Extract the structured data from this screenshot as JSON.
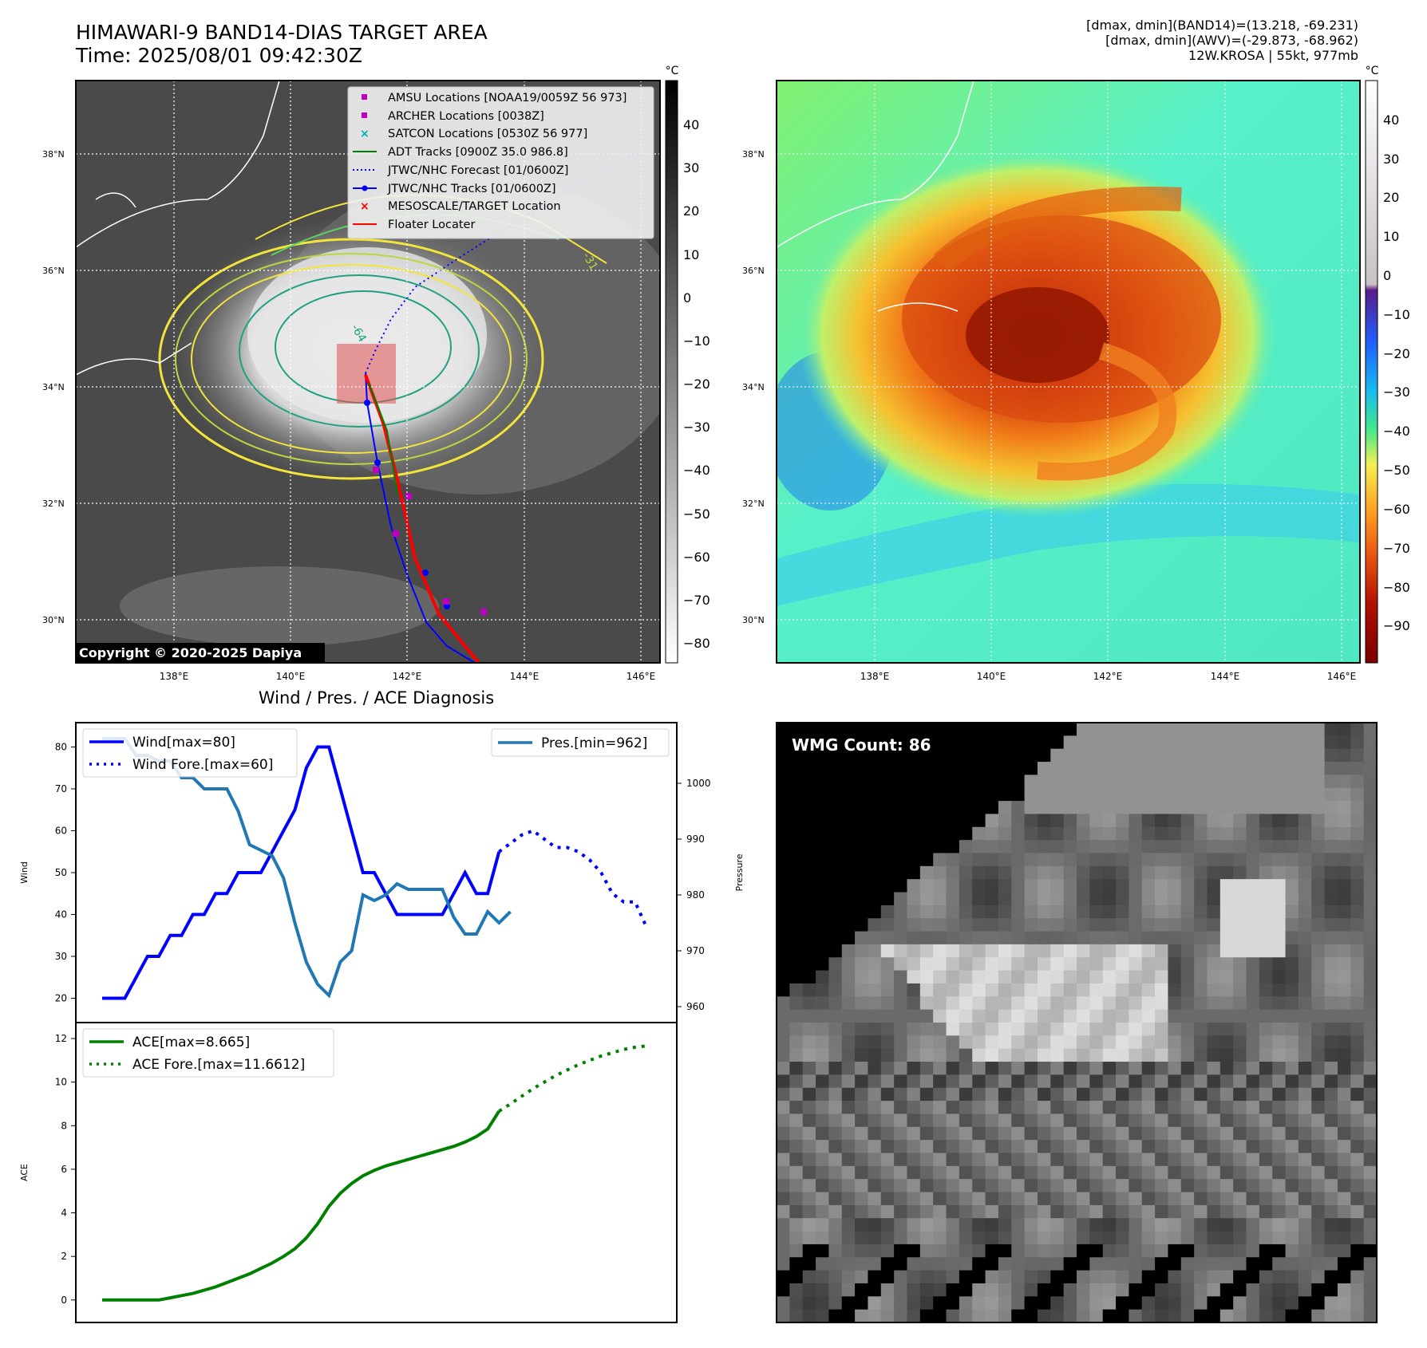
{
  "header": {
    "title_line1": "HIMAWARI-9 BAND14-DIAS TARGET AREA",
    "title_line2": "Time: 2025/08/01 09:42:30Z",
    "info_line1": "[dmax, dmin](BAND14)=(13.218, -69.231)",
    "info_line2": "[dmax, dmin](AWV)=(-29.873, -68.962)",
    "info_line3": "12W.KROSA | 55kt, 977mb"
  },
  "map": {
    "lat_labels": [
      "38°N",
      "36°N",
      "34°N",
      "32°N",
      "30°N"
    ],
    "lon_labels": [
      "138°E",
      "140°E",
      "142°E",
      "144°E",
      "146°E"
    ],
    "copyright": "Copyright © 2020-2025 Dapiya",
    "contour_labels": [
      "-64",
      "-31"
    ],
    "legend": [
      {
        "label": "AMSU Locations [NOAA19/0059Z 56 973]",
        "color": "#c000c0",
        "marker": "square"
      },
      {
        "label": "ARCHER Locations [0038Z]",
        "color": "#c000c0",
        "marker": "square"
      },
      {
        "label": "SATCON Locations [0530Z 56 977]",
        "color": "#00b0b0",
        "marker": "x"
      },
      {
        "label": "ADT Tracks [0900Z 35.0 986.8]",
        "color": "#008000",
        "marker": "line"
      },
      {
        "label": "JTWC/NHC Forecast [01/0600Z]",
        "color": "#0000ff",
        "marker": "dotted"
      },
      {
        "label": "JTWC/NHC Tracks [01/0600Z]",
        "color": "#0000ff",
        "marker": "line-dot"
      },
      {
        "label": "MESOSCALE/TARGET Location",
        "color": "#ff0000",
        "marker": "x"
      },
      {
        "label": "Floater Locater",
        "color": "#ff0000",
        "marker": "line"
      }
    ],
    "cbar1": {
      "unit": "°C",
      "ticks": [
        "40",
        "30",
        "20",
        "10",
        "0",
        "−10",
        "−20",
        "−30",
        "−40",
        "−50",
        "−60",
        "−70",
        "−80"
      ]
    },
    "cbar2": {
      "unit": "°C",
      "ticks": [
        "40",
        "30",
        "20",
        "10",
        "0",
        "−10",
        "−20",
        "−30",
        "−40",
        "−50",
        "−60",
        "−70",
        "−80",
        "−90"
      ]
    }
  },
  "wmg": {
    "label": "WMG Count: 86"
  },
  "chart_data": [
    {
      "type": "line",
      "title": "Wind / Pres. / ACE Diagnosis",
      "ylabel": "Wind",
      "ylim": [
        18,
        82
      ],
      "yticks": [
        20,
        30,
        40,
        50,
        60,
        70,
        80
      ],
      "series": [
        {
          "name": "Wind[max=80]",
          "style": "solid",
          "color": "#0000ff",
          "x": [
            0,
            1,
            2,
            3,
            4,
            5,
            6,
            7,
            8,
            9,
            10,
            11,
            12,
            13,
            14,
            15,
            16,
            17,
            18,
            19,
            20,
            21,
            22,
            23,
            24,
            25,
            26,
            27,
            28,
            29,
            30,
            31,
            32,
            33,
            34,
            35
          ],
          "y": [
            20,
            20,
            20,
            25,
            30,
            30,
            35,
            35,
            40,
            40,
            45,
            45,
            50,
            50,
            50,
            55,
            60,
            65,
            75,
            80,
            80,
            70,
            60,
            50,
            50,
            45,
            40,
            40,
            40,
            40,
            40,
            45,
            50,
            45,
            45,
            55
          ]
        },
        {
          "name": "Wind Fore.[max=60]",
          "style": "dotted",
          "color": "#0000ff",
          "x": [
            35,
            36,
            37,
            38,
            39,
            40,
            41,
            42,
            43,
            44,
            45,
            46,
            47,
            48
          ],
          "y": [
            55,
            57,
            59,
            60,
            58,
            56,
            56,
            55,
            53,
            50,
            45,
            43,
            43,
            37
          ]
        }
      ]
    },
    {
      "type": "line",
      "ylabel": "Pressure",
      "ylim": [
        960,
        1008
      ],
      "yticks": [
        960,
        970,
        980,
        990,
        1000
      ],
      "series": [
        {
          "name": "Pres.[min=962]",
          "style": "solid",
          "color": "#1f77b4",
          "x": [
            0,
            1,
            2,
            3,
            4,
            5,
            6,
            7,
            8,
            9,
            10,
            11,
            12,
            13,
            14,
            15,
            16,
            17,
            18,
            19,
            20,
            21,
            22,
            23,
            24,
            25,
            26,
            27,
            28,
            29,
            30,
            31,
            32,
            33,
            34,
            35,
            36
          ],
          "y": [
            1008,
            1008,
            1008,
            1005,
            1005,
            1004,
            1004,
            1001,
            1001,
            999,
            999,
            999,
            995,
            989,
            988,
            987,
            983,
            975,
            968,
            964,
            962,
            968,
            970,
            980,
            979,
            980,
            982,
            981,
            981,
            981,
            981,
            976,
            973,
            973,
            977,
            975,
            977
          ]
        }
      ]
    },
    {
      "type": "line",
      "ylabel": "ACE",
      "ylim": [
        -0.3,
        12
      ],
      "yticks": [
        0,
        2,
        4,
        6,
        8,
        10,
        12
      ],
      "series": [
        {
          "name": "ACE[max=8.665]",
          "style": "solid",
          "color": "#008000",
          "x": [
            0,
            1,
            2,
            3,
            4,
            5,
            6,
            7,
            8,
            9,
            10,
            11,
            12,
            13,
            14,
            15,
            16,
            17,
            18,
            19,
            20,
            21,
            22,
            23,
            24,
            25,
            26,
            27,
            28,
            29,
            30,
            31,
            32,
            33,
            34,
            35
          ],
          "y": [
            0,
            0,
            0,
            0,
            0,
            0,
            0.1,
            0.2,
            0.3,
            0.45,
            0.6,
            0.8,
            1.0,
            1.2,
            1.45,
            1.7,
            2.0,
            2.35,
            2.85,
            3.5,
            4.3,
            4.9,
            5.35,
            5.7,
            5.95,
            6.15,
            6.3,
            6.45,
            6.6,
            6.75,
            6.9,
            7.05,
            7.25,
            7.5,
            7.85,
            8.665
          ]
        },
        {
          "name": "ACE Fore.[max=11.6612]",
          "style": "dotted",
          "color": "#008000",
          "x": [
            35,
            36,
            37,
            38,
            39,
            40,
            41,
            42,
            43,
            44,
            45,
            46,
            47,
            48
          ],
          "y": [
            8.665,
            9.0,
            9.35,
            9.7,
            10.0,
            10.3,
            10.55,
            10.8,
            11.0,
            11.2,
            11.35,
            11.5,
            11.6,
            11.6612
          ]
        }
      ]
    }
  ]
}
